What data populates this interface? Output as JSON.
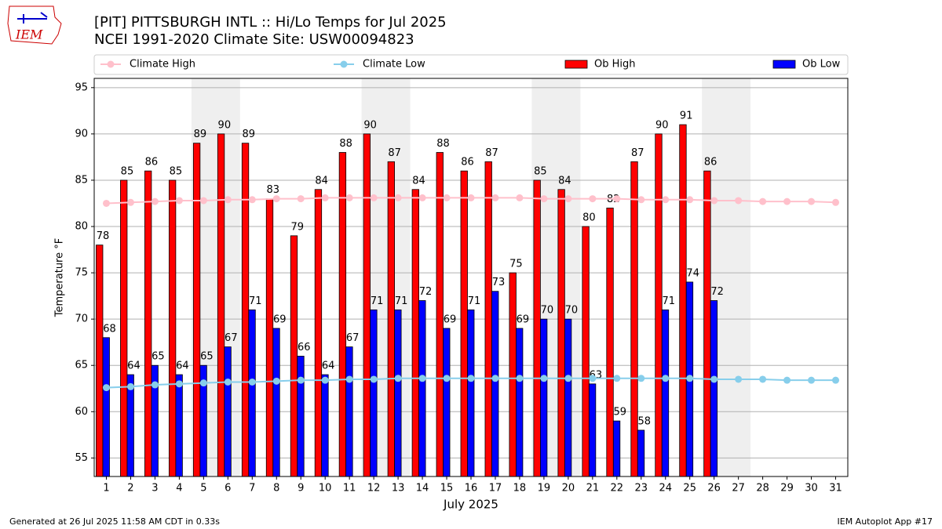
{
  "chart_data": {
    "type": "bar",
    "title": "[PIT] PITTSBURGH INTL :: Hi/Lo Temps for Jul 2025",
    "subtitle": "NCEI 1991-2020 Climate Site: USW00094823",
    "logo_text": "IEM",
    "xlabel": "July 2025",
    "ylabel": "Temperature °F",
    "footer_left": "Generated at 26 Jul 2025 11:58 AM CDT in 0.33s",
    "footer_right": "IEM Autoplot App #17",
    "x": [
      1,
      2,
      3,
      4,
      5,
      6,
      7,
      8,
      9,
      10,
      11,
      12,
      13,
      14,
      15,
      16,
      17,
      18,
      19,
      20,
      21,
      22,
      23,
      24,
      25,
      26,
      27,
      28,
      29,
      30,
      31
    ],
    "xlim": [
      0.5,
      31.5
    ],
    "ylim": [
      53,
      96
    ],
    "yticks": [
      55,
      60,
      65,
      70,
      75,
      80,
      85,
      90,
      95
    ],
    "grid": true,
    "shaded_spans": [
      [
        4.5,
        6.5
      ],
      [
        11.5,
        13.5
      ],
      [
        18.5,
        20.5
      ],
      [
        25.5,
        27.5
      ]
    ],
    "series": [
      {
        "name": "Climate High",
        "type": "line",
        "color": "#ffc0cb",
        "values": [
          82.5,
          82.6,
          82.7,
          82.8,
          82.8,
          82.9,
          82.9,
          83.0,
          83.0,
          83.1,
          83.1,
          83.1,
          83.1,
          83.1,
          83.1,
          83.1,
          83.1,
          83.1,
          83.0,
          83.0,
          83.0,
          83.0,
          82.9,
          82.9,
          82.9,
          82.8,
          82.8,
          82.7,
          82.7,
          82.7,
          82.6
        ]
      },
      {
        "name": "Climate Low",
        "type": "line",
        "color": "#87ceeb",
        "values": [
          62.6,
          62.7,
          62.9,
          63.0,
          63.1,
          63.2,
          63.2,
          63.3,
          63.4,
          63.4,
          63.5,
          63.5,
          63.6,
          63.6,
          63.6,
          63.6,
          63.6,
          63.6,
          63.6,
          63.6,
          63.6,
          63.6,
          63.6,
          63.6,
          63.6,
          63.5,
          63.5,
          63.5,
          63.4,
          63.4,
          63.4
        ]
      },
      {
        "name": "Ob High",
        "type": "bar",
        "color": "#ff0000",
        "values": [
          78,
          85,
          86,
          85,
          89,
          90,
          89,
          83,
          79,
          84,
          88,
          90,
          87,
          84,
          88,
          86,
          87,
          75,
          85,
          84,
          80,
          82,
          87,
          90,
          91,
          86,
          null,
          null,
          null,
          null,
          null
        ]
      },
      {
        "name": "Ob Low",
        "type": "bar",
        "color": "#0000ff",
        "values": [
          68,
          64,
          65,
          64,
          65,
          67,
          71,
          69,
          66,
          64,
          67,
          71,
          71,
          72,
          69,
          71,
          73,
          69,
          70,
          70,
          63,
          59,
          58,
          71,
          74,
          72,
          null,
          null,
          null,
          null,
          null
        ]
      }
    ]
  }
}
